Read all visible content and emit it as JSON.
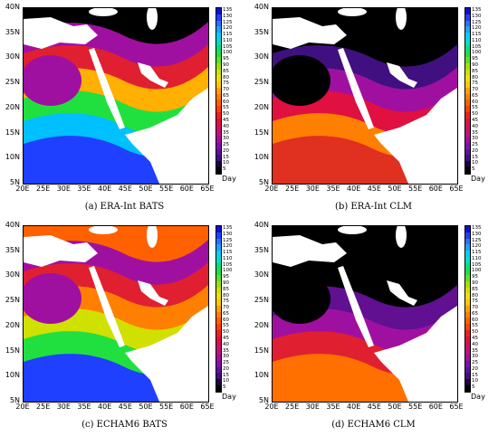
{
  "panels": [
    {
      "caption": "(a)  ERA-Int BATS",
      "scheme": "bats_era"
    },
    {
      "caption": "(b)  ERA-Int CLM",
      "scheme": "clm_era"
    },
    {
      "caption": "(c)  ECHAM6 BATS",
      "scheme": "bats_echam"
    },
    {
      "caption": "(d)  ECHAM6 CLM",
      "scheme": "clm_echam"
    }
  ],
  "axes": {
    "x_ticks": [
      "20E",
      "25E",
      "30E",
      "35E",
      "40E",
      "45E",
      "50E",
      "55E",
      "60E",
      "65E"
    ],
    "y_ticks": [
      "40N",
      "35N",
      "30N",
      "25N",
      "20N",
      "15N",
      "10N",
      "5N"
    ]
  },
  "colorbar": {
    "levels": [
      "135",
      "130",
      "125",
      "120",
      "115",
      "110",
      "105",
      "100",
      "95",
      "90",
      "85",
      "80",
      "75",
      "70",
      "65",
      "60",
      "55",
      "50",
      "45",
      "40",
      "35",
      "30",
      "25",
      "20",
      "15",
      "10",
      "5"
    ],
    "unit": "Day",
    "colors": [
      "#1010d0",
      "#2040ff",
      "#3070ff",
      "#20a0ff",
      "#00d0ff",
      "#00e0c0",
      "#00e080",
      "#20e040",
      "#60e020",
      "#a0e000",
      "#d0e000",
      "#f0e000",
      "#ffc800",
      "#ffa000",
      "#ff8000",
      "#ff6000",
      "#ff4000",
      "#f02020",
      "#e01040",
      "#d01060",
      "#c01080",
      "#a010a0",
      "#8010b0",
      "#6010a0",
      "#401080",
      "#200040",
      "#000000"
    ]
  }
}
